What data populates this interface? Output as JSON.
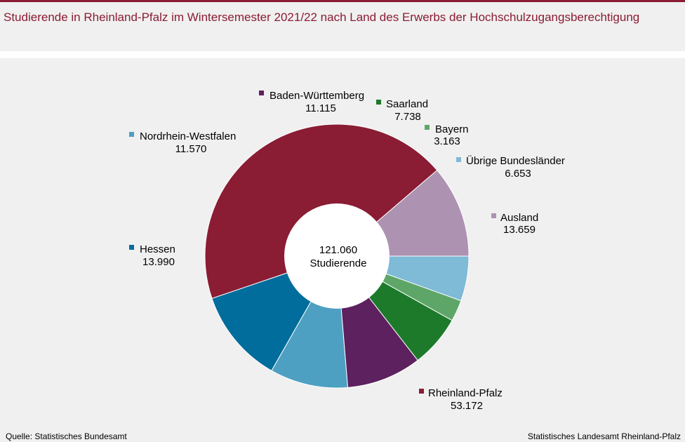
{
  "title": "Studierende in Rheinland-Pfalz im Wintersemester 2021/22 nach Land des Erwerbs der Hochschulzugangsberechtigung",
  "footer": {
    "source": "Quelle:  Statistisches Bundesamt",
    "publisher": "Statistisches Landesamt  Rheinland-Pfalz"
  },
  "chart_data": {
    "type": "pie",
    "variant": "donut",
    "center_value": "121.060",
    "center_label": "Studierende",
    "slices": [
      {
        "name": "Ausland",
        "value": 13659,
        "label": "13.659",
        "color": "#ad92b2"
      },
      {
        "name": "Rheinland-Pfalz",
        "value": 53172,
        "label": "53.172",
        "color": "#8a1c33"
      },
      {
        "name": "Hessen",
        "value": 13990,
        "label": "13.990",
        "color": "#006d9c"
      },
      {
        "name": "Nordrhein-Westfalen",
        "value": 11570,
        "label": "11.570",
        "color": "#4da0c1"
      },
      {
        "name": "Baden-Württemberg",
        "value": 11115,
        "label": "11.115",
        "color": "#5c215e"
      },
      {
        "name": "Saarland",
        "value": 7738,
        "label": "7.738",
        "color": "#1d7a2a"
      },
      {
        "name": "Bayern",
        "value": 3163,
        "label": "3.163",
        "color": "#5ea668"
      },
      {
        "name": "Übrige Bundesländer",
        "value": 6653,
        "label": "6.653",
        "color": "#7fbad6"
      }
    ]
  }
}
